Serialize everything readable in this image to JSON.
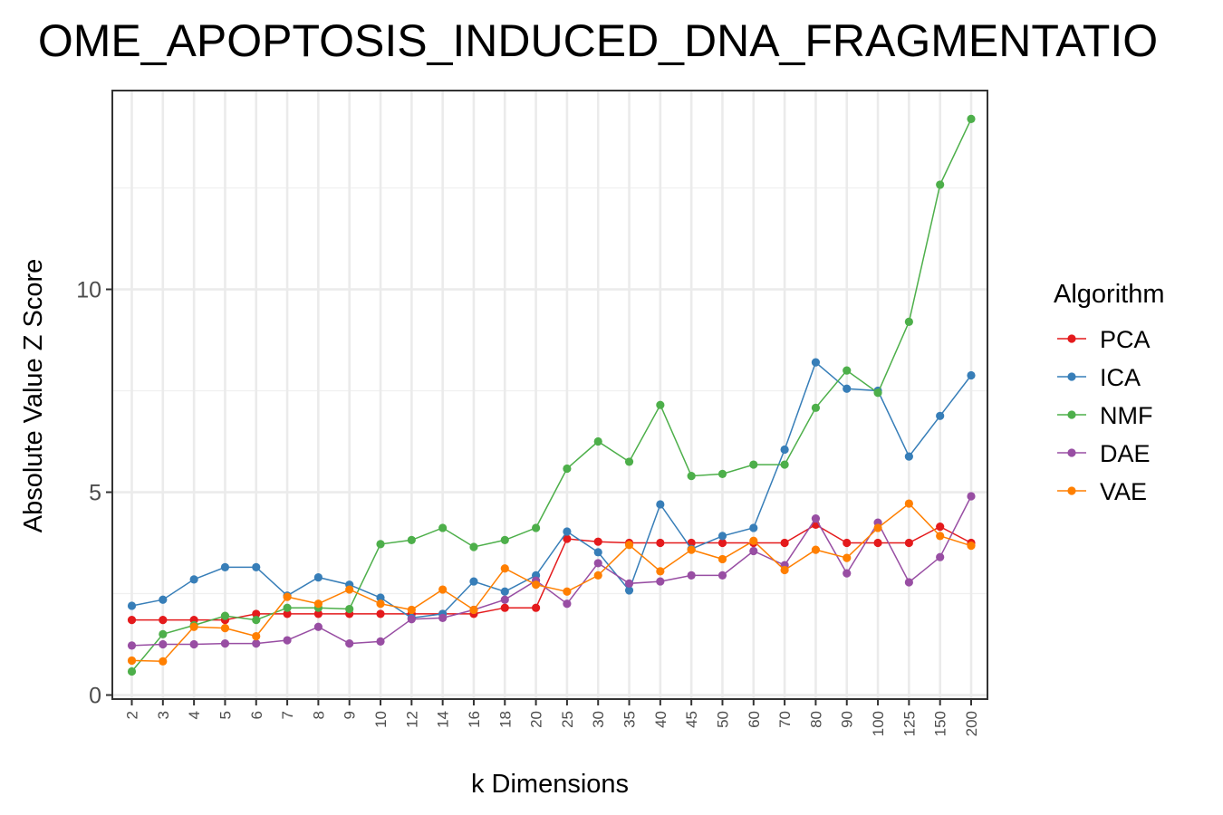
{
  "chart_data": {
    "type": "line",
    "title": "OME_APOPTOSIS_INDUCED_DNA_FRAGMENTATIO",
    "xlabel": "k Dimensions",
    "ylabel": "Absolute Value Z Score",
    "categories": [
      "2",
      "3",
      "4",
      "5",
      "6",
      "7",
      "8",
      "9",
      "10",
      "12",
      "14",
      "16",
      "18",
      "20",
      "25",
      "30",
      "35",
      "40",
      "45",
      "50",
      "60",
      "70",
      "80",
      "90",
      "100",
      "125",
      "150",
      "200"
    ],
    "y_ticks": [
      "0",
      "5",
      "10"
    ],
    "ylim": [
      -0.1,
      14.9
    ],
    "grid": true,
    "legend": {
      "title": "Algorithm",
      "placement": "right",
      "entries": [
        "PCA",
        "ICA",
        "NMF",
        "DAE",
        "VAE"
      ]
    },
    "series": [
      {
        "name": "PCA",
        "color": "#e41a1c",
        "values": [
          1.85,
          1.85,
          1.85,
          1.85,
          2.0,
          2.0,
          2.0,
          2.0,
          2.0,
          2.0,
          2.0,
          2.0,
          2.15,
          2.15,
          3.85,
          3.78,
          3.75,
          3.75,
          3.75,
          3.75,
          3.75,
          3.75,
          4.2,
          3.75,
          3.75,
          3.75,
          4.15,
          3.75
        ]
      },
      {
        "name": "ICA",
        "color": "#377eb8",
        "values": [
          2.2,
          2.35,
          2.85,
          3.15,
          3.15,
          2.45,
          2.9,
          2.72,
          2.4,
          1.9,
          2.0,
          2.8,
          2.55,
          2.95,
          4.03,
          3.52,
          2.58,
          4.7,
          3.6,
          3.92,
          4.12,
          6.05,
          8.2,
          7.55,
          7.5,
          5.88,
          6.88,
          7.88
        ]
      },
      {
        "name": "NMF",
        "color": "#4daf4a",
        "values": [
          0.58,
          1.5,
          1.72,
          1.95,
          1.85,
          2.15,
          2.15,
          2.12,
          3.72,
          3.82,
          4.12,
          3.65,
          3.82,
          4.12,
          5.58,
          6.25,
          5.75,
          7.15,
          5.4,
          5.45,
          5.68,
          5.68,
          7.08,
          8.0,
          7.45,
          9.2,
          12.58,
          14.2
        ]
      },
      {
        "name": "DAE",
        "color": "#984ea3",
        "values": [
          1.22,
          1.25,
          1.25,
          1.27,
          1.27,
          1.35,
          1.68,
          1.27,
          1.32,
          1.87,
          1.9,
          2.1,
          2.35,
          2.82,
          2.25,
          3.25,
          2.75,
          2.8,
          2.95,
          2.95,
          3.55,
          3.2,
          4.35,
          3.0,
          4.25,
          2.78,
          3.4,
          4.9
        ]
      },
      {
        "name": "VAE",
        "color": "#ff7f00",
        "values": [
          0.85,
          0.83,
          1.68,
          1.65,
          1.45,
          2.42,
          2.25,
          2.6,
          2.25,
          2.1,
          2.6,
          2.1,
          3.12,
          2.72,
          2.55,
          2.95,
          3.7,
          3.05,
          3.58,
          3.35,
          3.8,
          3.08,
          3.58,
          3.38,
          4.12,
          4.72,
          3.92,
          3.68
        ]
      }
    ]
  }
}
